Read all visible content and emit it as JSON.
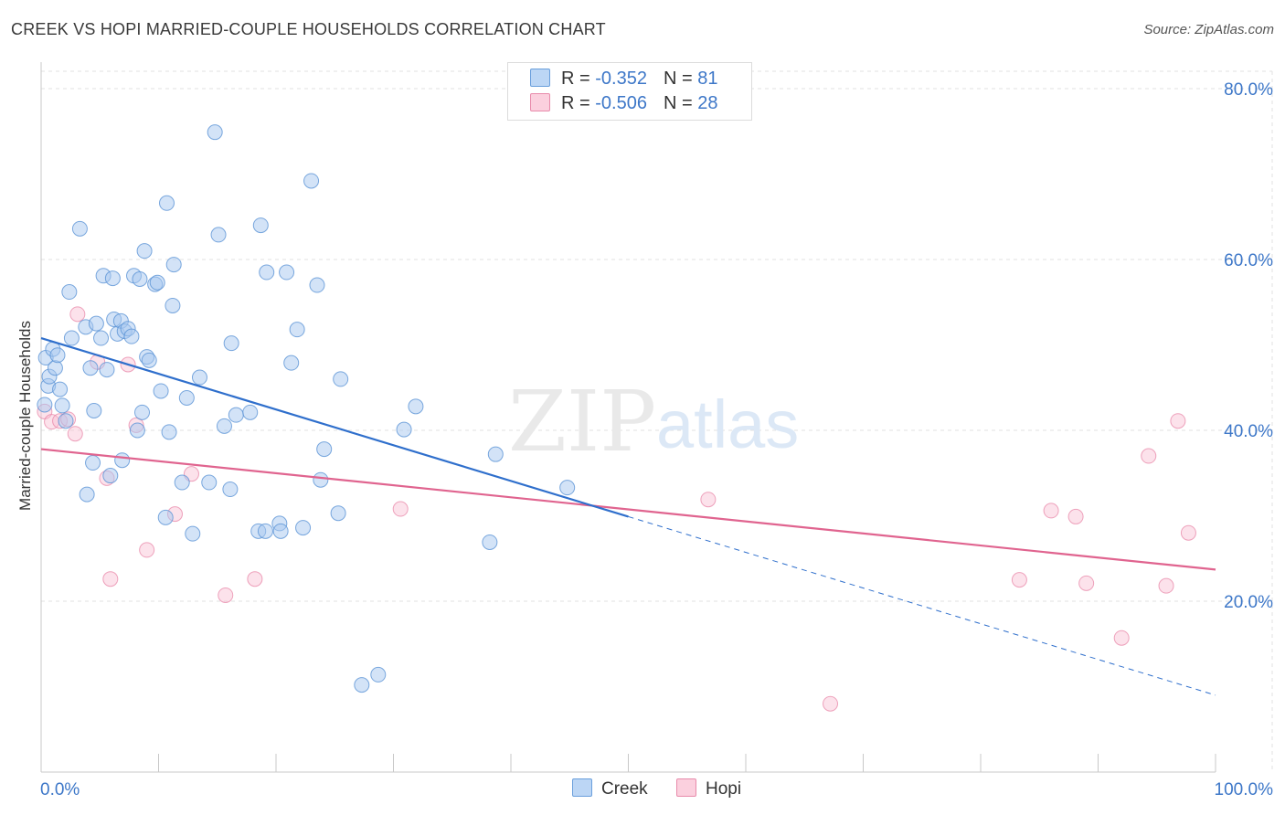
{
  "title": "CREEK VS HOPI MARRIED-COUPLE HOUSEHOLDS CORRELATION CHART",
  "source": "Source: ZipAtlas.com",
  "watermark": {
    "zip": "ZIP",
    "atlas": "atlas"
  },
  "legend": {
    "rows": [
      {
        "r_label": "R = ",
        "r_value": "-0.352",
        "n_label": "N = ",
        "n_value": "81"
      },
      {
        "r_label": "R = ",
        "r_value": "-0.506",
        "n_label": "N = ",
        "n_value": "28"
      }
    ]
  },
  "colors": {
    "creek_fill": "#a8c8f0",
    "creek_stroke": "#5b93d6",
    "creek_line": "#2f6fcc",
    "hopi_fill": "#f8bfd2",
    "hopi_stroke": "#e77fa3",
    "hopi_line": "#e0648f",
    "tick_text": "#3d77c8",
    "grid": "#e0e0e0"
  },
  "chart_data": {
    "type": "scatter",
    "title": "CREEK VS HOPI MARRIED-COUPLE HOUSEHOLDS CORRELATION CHART",
    "xlabel": "",
    "ylabel": "Married-couple Households",
    "xlim": [
      0,
      100
    ],
    "ylim": [
      0,
      80
    ],
    "x_tick_labels": [
      "0.0%",
      "100.0%"
    ],
    "y_ticks": [
      20,
      40,
      60,
      80
    ],
    "y_tick_labels": [
      "20.0%",
      "40.0%",
      "60.0%",
      "80.0%"
    ],
    "grid": true,
    "legend_position": "top-center",
    "series": [
      {
        "name": "Creek",
        "points": [
          [
            0.3,
            43
          ],
          [
            0.4,
            48.5
          ],
          [
            0.6,
            45.2
          ],
          [
            0.7,
            46.3
          ],
          [
            1.0,
            49.5
          ],
          [
            1.2,
            47.3
          ],
          [
            1.4,
            48.8
          ],
          [
            1.6,
            44.8
          ],
          [
            1.8,
            42.9
          ],
          [
            2.1,
            41.1
          ],
          [
            2.4,
            56.2
          ],
          [
            2.6,
            50.8
          ],
          [
            3.3,
            63.6
          ],
          [
            3.8,
            52.1
          ],
          [
            3.9,
            32.5
          ],
          [
            4.2,
            47.3
          ],
          [
            4.4,
            36.2
          ],
          [
            4.5,
            42.3
          ],
          [
            4.7,
            52.5
          ],
          [
            5.1,
            50.8
          ],
          [
            5.3,
            58.1
          ],
          [
            5.6,
            47.1
          ],
          [
            5.9,
            34.7
          ],
          [
            6.1,
            57.8
          ],
          [
            6.2,
            53.0
          ],
          [
            6.5,
            51.3
          ],
          [
            6.8,
            52.8
          ],
          [
            6.9,
            36.5
          ],
          [
            7.1,
            51.6
          ],
          [
            7.4,
            51.9
          ],
          [
            7.7,
            51.0
          ],
          [
            7.9,
            58.1
          ],
          [
            8.2,
            40.0
          ],
          [
            8.4,
            57.7
          ],
          [
            8.6,
            42.1
          ],
          [
            8.8,
            61.0
          ],
          [
            9.0,
            48.6
          ],
          [
            9.2,
            48.2
          ],
          [
            9.7,
            57.1
          ],
          [
            9.9,
            57.3
          ],
          [
            10.2,
            44.6
          ],
          [
            10.6,
            29.8
          ],
          [
            10.7,
            66.6
          ],
          [
            10.9,
            39.8
          ],
          [
            11.2,
            54.6
          ],
          [
            11.3,
            59.4
          ],
          [
            12.0,
            33.9
          ],
          [
            12.4,
            43.8
          ],
          [
            12.9,
            27.9
          ],
          [
            13.5,
            46.2
          ],
          [
            14.3,
            33.9
          ],
          [
            14.8,
            74.9
          ],
          [
            15.1,
            62.9
          ],
          [
            15.6,
            40.5
          ],
          [
            16.1,
            33.1
          ],
          [
            16.2,
            50.2
          ],
          [
            16.6,
            41.8
          ],
          [
            17.8,
            42.1
          ],
          [
            18.5,
            28.2
          ],
          [
            18.7,
            64.0
          ],
          [
            19.1,
            28.2
          ],
          [
            19.2,
            58.5
          ],
          [
            20.3,
            29.1
          ],
          [
            20.4,
            28.2
          ],
          [
            20.9,
            58.5
          ],
          [
            21.3,
            47.9
          ],
          [
            21.8,
            51.8
          ],
          [
            22.3,
            28.6
          ],
          [
            23.0,
            69.2
          ],
          [
            23.5,
            57.0
          ],
          [
            23.8,
            34.2
          ],
          [
            24.1,
            37.8
          ],
          [
            25.3,
            30.3
          ],
          [
            25.5,
            46.0
          ],
          [
            27.3,
            10.2
          ],
          [
            28.7,
            11.4
          ],
          [
            30.9,
            40.1
          ],
          [
            31.9,
            42.8
          ],
          [
            38.2,
            26.9
          ],
          [
            38.7,
            37.2
          ],
          [
            44.8,
            33.3
          ]
        ],
        "trend": {
          "x": [
            0,
            50
          ],
          "y": [
            50.8,
            29.9
          ]
        },
        "trend_extrapolated": {
          "x": [
            50,
            100
          ],
          "y": [
            29.9,
            9.0
          ]
        }
      },
      {
        "name": "Hopi",
        "points": [
          [
            0.3,
            42.2
          ],
          [
            0.9,
            41.0
          ],
          [
            1.6,
            41.1
          ],
          [
            2.3,
            41.3
          ],
          [
            2.9,
            39.6
          ],
          [
            3.1,
            53.6
          ],
          [
            4.8,
            48.0
          ],
          [
            5.6,
            34.4
          ],
          [
            5.9,
            22.6
          ],
          [
            7.4,
            47.7
          ],
          [
            8.1,
            40.6
          ],
          [
            9.0,
            26.0
          ],
          [
            11.4,
            30.2
          ],
          [
            12.8,
            34.9
          ],
          [
            15.7,
            20.7
          ],
          [
            18.2,
            22.6
          ],
          [
            30.6,
            30.8
          ],
          [
            56.8,
            31.9
          ],
          [
            67.2,
            8.0
          ],
          [
            83.3,
            22.5
          ],
          [
            86.0,
            30.6
          ],
          [
            88.1,
            29.9
          ],
          [
            89.0,
            22.1
          ],
          [
            92.0,
            15.7
          ],
          [
            94.3,
            37.0
          ],
          [
            95.8,
            21.8
          ],
          [
            96.8,
            41.1
          ],
          [
            97.7,
            28.0
          ]
        ],
        "trend": {
          "x": [
            0,
            100
          ],
          "y": [
            37.8,
            23.7
          ]
        }
      }
    ]
  }
}
